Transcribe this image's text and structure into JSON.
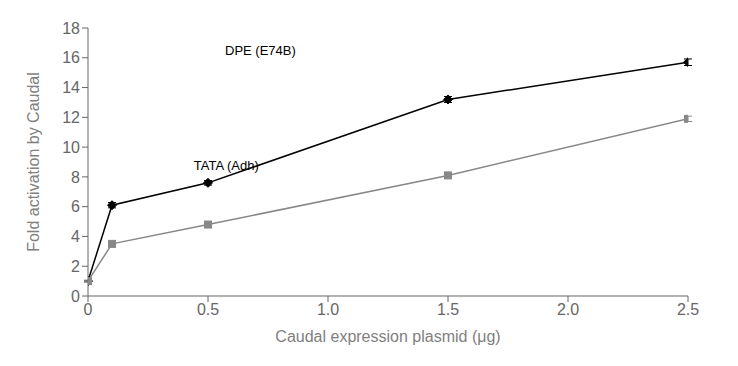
{
  "chart_data": {
    "type": "line",
    "xlabel": "Caudal expression plasmid (μg)",
    "ylabel": "Fold activation by Caudal",
    "x": [
      0,
      0.1,
      0.5,
      1.5,
      2.5
    ],
    "series": [
      {
        "color": "#000000",
        "marker": "diamond",
        "values": [
          1.0,
          6.1,
          7.6,
          13.2,
          15.7
        ],
        "errors": [
          0.05,
          0.18,
          0.15,
          0.2,
          0.22
        ]
      },
      {
        "color": "#888888",
        "marker": "square",
        "values": [
          1.0,
          3.5,
          4.8,
          8.1,
          11.9
        ],
        "errors": [
          0.05,
          0.12,
          0.1,
          0.15,
          0.18
        ]
      }
    ],
    "xlim": [
      0,
      2.5
    ],
    "ylim": [
      0,
      18
    ],
    "xticks": [
      0,
      0.5,
      {
        "value": 1,
        "label": "1.0"
      },
      1.5,
      {
        "value": 2,
        "label": "2.0"
      },
      2.5
    ],
    "yticks": [
      0,
      2,
      4,
      6,
      8,
      10,
      12,
      14,
      16,
      18
    ],
    "grid": false,
    "annotations": [
      {
        "text": "DPE (E74B)",
        "x": 0.55,
        "y": 16.5
      },
      {
        "text": "TATA (Adh)",
        "x": 0.42,
        "y": 8.8
      }
    ]
  }
}
